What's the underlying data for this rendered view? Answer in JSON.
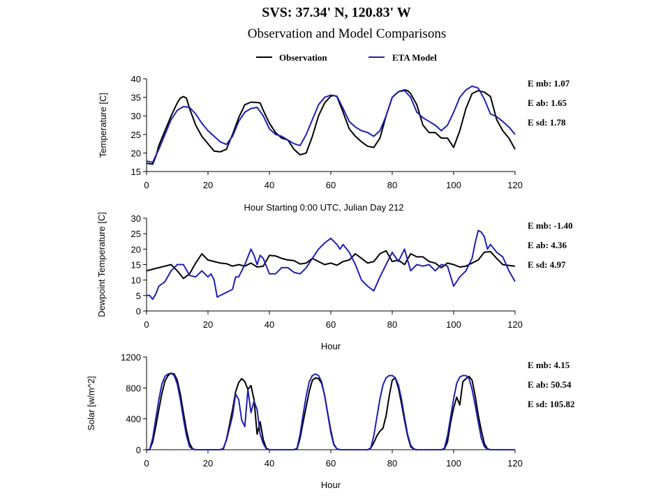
{
  "title": "SVS: 37.34' N, 120.83' W",
  "subtitle": "Observation and Model Comparisons",
  "legend": [
    {
      "label": "Observation",
      "color": "#000000"
    },
    {
      "label": "ETA Model",
      "color": "#1f1fb4"
    }
  ],
  "chart_data": [
    {
      "type": "line",
      "ylabel": "Temperature [C]",
      "xlabel": "Hour Starting 0:00 UTC, Julian Day 212",
      "xlim": [
        0,
        120
      ],
      "ylim": [
        15,
        40
      ],
      "xticks": [
        0,
        20,
        40,
        60,
        80,
        100,
        120
      ],
      "yticks": [
        15,
        20,
        25,
        30,
        35,
        40
      ],
      "stats": [
        "E mb: 1.07",
        "E ab: 1.65",
        "E sd: 1.78"
      ],
      "series": [
        {
          "name": "Observation",
          "color": "#000000",
          "x": [
            0,
            2,
            3,
            4,
            6,
            8,
            10,
            11,
            12,
            13,
            14,
            16,
            18,
            20,
            22,
            24,
            26,
            28,
            30,
            32,
            34,
            36,
            37,
            38,
            40,
            42,
            44,
            46,
            48,
            50,
            52,
            54,
            56,
            58,
            60,
            61,
            62,
            64,
            66,
            68,
            70,
            72,
            74,
            76,
            78,
            80,
            82,
            84,
            85,
            86,
            88,
            90,
            92,
            94,
            96,
            98,
            100,
            102,
            104,
            106,
            108,
            110,
            112,
            114,
            116,
            118,
            120
          ],
          "y": [
            17.2,
            17,
            19,
            22,
            26,
            30,
            33.5,
            34.8,
            35.2,
            34.8,
            32,
            27.5,
            24.5,
            22.5,
            20.5,
            20.3,
            21,
            25,
            29.5,
            33,
            33.7,
            33.6,
            33.5,
            31.5,
            28,
            25.5,
            24,
            23.5,
            21,
            19.5,
            20,
            24.5,
            30,
            33.5,
            35.3,
            35.5,
            35.2,
            31,
            26.5,
            24.5,
            23,
            21.8,
            21.5,
            24,
            30,
            35,
            36.5,
            37,
            36.8,
            36,
            33,
            27.5,
            25.5,
            25.5,
            24,
            24,
            21.5,
            26,
            32,
            36,
            36.8,
            36.4,
            35.2,
            29,
            26,
            24,
            21
          ]
        },
        {
          "name": "ETA Model",
          "color": "#1f1fb4",
          "x": [
            0,
            2,
            4,
            6,
            8,
            10,
            12,
            14,
            16,
            18,
            20,
            22,
            24,
            26,
            28,
            30,
            32,
            34,
            36,
            38,
            40,
            42,
            44,
            46,
            48,
            50,
            52,
            54,
            56,
            58,
            60,
            62,
            64,
            66,
            68,
            70,
            72,
            74,
            76,
            78,
            80,
            82,
            84,
            86,
            88,
            90,
            92,
            94,
            96,
            98,
            100,
            102,
            104,
            106,
            108,
            110,
            112,
            114,
            116,
            118,
            120
          ],
          "y": [
            17.8,
            17.5,
            21,
            25,
            29,
            31.5,
            32.5,
            32.3,
            30.5,
            28,
            26,
            24.5,
            23,
            22.3,
            24.5,
            28.5,
            31,
            32,
            32.3,
            30,
            26.5,
            25,
            24.5,
            23.5,
            22.5,
            22,
            25,
            29,
            33,
            35,
            35.6,
            35.3,
            32,
            28.5,
            27,
            26,
            25.5,
            24.5,
            26,
            30,
            35,
            36.5,
            36.8,
            35,
            31,
            29.5,
            28.5,
            27.5,
            26,
            27.5,
            31,
            35,
            37,
            38,
            37.5,
            34.5,
            30.5,
            29.8,
            28.5,
            27,
            25
          ]
        }
      ]
    },
    {
      "type": "line",
      "ylabel": "Dewpoint Temperature [C]",
      "xlabel": "Hour",
      "xlim": [
        0,
        120
      ],
      "ylim": [
        0,
        30
      ],
      "xticks": [
        0,
        20,
        40,
        60,
        80,
        100,
        120
      ],
      "yticks": [
        0,
        5,
        10,
        15,
        20,
        25,
        30
      ],
      "stats": [
        "E mb: -1.40",
        "E ab: 4.36",
        "E sd: 4.97"
      ],
      "series": [
        {
          "name": "Observation",
          "color": "#000000",
          "x": [
            0,
            2,
            4,
            6,
            8,
            10,
            12,
            14,
            16,
            18,
            20,
            22,
            24,
            26,
            28,
            30,
            32,
            34,
            36,
            38,
            40,
            42,
            44,
            46,
            48,
            50,
            52,
            54,
            56,
            58,
            60,
            62,
            64,
            66,
            68,
            70,
            72,
            74,
            76,
            78,
            80,
            82,
            84,
            86,
            88,
            90,
            92,
            94,
            96,
            98,
            100,
            102,
            104,
            106,
            108,
            110,
            112,
            114,
            116,
            118,
            120
          ],
          "y": [
            13,
            13.5,
            14,
            14.5,
            15,
            13,
            10.5,
            12,
            15.5,
            18.5,
            16.5,
            16,
            15.5,
            15.3,
            14.5,
            15,
            14.5,
            15.5,
            14.2,
            14.5,
            18,
            17.8,
            17,
            16.5,
            16.3,
            15.2,
            15.5,
            17,
            16,
            15,
            15.5,
            14.8,
            16,
            16.5,
            18.5,
            17,
            15.5,
            16,
            18.5,
            19.5,
            16,
            16.5,
            15,
            18.5,
            17.5,
            17.5,
            16,
            15.5,
            14,
            15.5,
            15,
            14.2,
            14.5,
            15.5,
            16.5,
            19,
            19.2,
            17,
            15,
            14.7,
            14.5
          ]
        },
        {
          "name": "ETA Model",
          "color": "#1f1fb4",
          "x": [
            0,
            1,
            2,
            3,
            4,
            6,
            8,
            10,
            12,
            14,
            16,
            18,
            20,
            21,
            22,
            23,
            24,
            26,
            28,
            29,
            30,
            32,
            34,
            35,
            36,
            37,
            38,
            40,
            42,
            44,
            46,
            48,
            50,
            52,
            54,
            56,
            58,
            60,
            62,
            63,
            64,
            66,
            68,
            70,
            72,
            74,
            76,
            78,
            80,
            81,
            82,
            84,
            86,
            88,
            90,
            92,
            94,
            96,
            98,
            100,
            102,
            104,
            106,
            107,
            108,
            109,
            110,
            111,
            112,
            114,
            116,
            118,
            120
          ],
          "y": [
            5,
            5,
            3.8,
            5.5,
            8,
            9.5,
            13,
            15,
            15,
            11.5,
            11,
            13,
            11,
            12,
            10,
            4.5,
            5,
            6,
            7,
            11,
            11,
            15,
            20,
            18,
            15,
            18,
            17,
            12,
            12,
            14,
            14,
            12.5,
            12,
            14,
            17,
            20,
            22,
            23.5,
            21.5,
            20,
            21.5,
            19,
            15,
            10,
            8,
            6.5,
            11,
            15,
            19,
            17.5,
            16,
            20,
            13,
            15,
            14.5,
            15,
            13,
            15,
            14.5,
            8,
            11,
            13,
            17,
            22,
            26,
            25.5,
            24,
            20,
            21.5,
            19,
            17.5,
            13,
            9.5
          ]
        }
      ]
    },
    {
      "type": "line",
      "ylabel": "Solar [w/m^2]",
      "xlabel": "Hour",
      "xlim": [
        0,
        120
      ],
      "ylim": [
        0,
        1200
      ],
      "xticks": [
        0,
        20,
        40,
        60,
        80,
        100,
        120
      ],
      "yticks": [
        0,
        400,
        800,
        1200
      ],
      "stats": [
        "E mb: 4.15",
        "E ab: 50.54",
        "E sd: 105.82"
      ],
      "series": [
        {
          "name": "Observation",
          "color": "#000000",
          "x": [
            0,
            1,
            2,
            3,
            4,
            5,
            6,
            7,
            8,
            9,
            10,
            11,
            12,
            13,
            14,
            15,
            16,
            24,
            25,
            26,
            27,
            28,
            29,
            30,
            31,
            32,
            33,
            34,
            35,
            36,
            37,
            38,
            39,
            40,
            48,
            49,
            50,
            51,
            52,
            53,
            54,
            55,
            56,
            57,
            58,
            59,
            60,
            61,
            62,
            63,
            64,
            72,
            73,
            74,
            75,
            76,
            77,
            78,
            79,
            80,
            81,
            82,
            83,
            84,
            85,
            86,
            87,
            88,
            96,
            97,
            98,
            99,
            100,
            101,
            102,
            103,
            104,
            105,
            106,
            107,
            108,
            109,
            110,
            111,
            112,
            120
          ],
          "y": [
            0,
            0,
            100,
            300,
            520,
            730,
            890,
            960,
            990,
            980,
            900,
            720,
            480,
            250,
            80,
            10,
            0,
            0,
            10,
            130,
            320,
            520,
            750,
            870,
            920,
            880,
            780,
            830,
            650,
            200,
            360,
            130,
            20,
            0,
            0,
            10,
            150,
            360,
            560,
            760,
            900,
            930,
            920,
            860,
            700,
            470,
            250,
            70,
            10,
            0,
            0,
            0,
            20,
            90,
            180,
            240,
            280,
            440,
            690,
            900,
            930,
            800,
            600,
            380,
            180,
            40,
            5,
            0,
            0,
            10,
            100,
            350,
            540,
            680,
            580,
            880,
            920,
            950,
            900,
            700,
            450,
            250,
            80,
            10,
            0,
            0
          ]
        },
        {
          "name": "ETA Model",
          "color": "#1f1fb4",
          "x": [
            0,
            1,
            2,
            3,
            4,
            5,
            6,
            7,
            8,
            9,
            10,
            11,
            12,
            13,
            14,
            15,
            16,
            24,
            25,
            26,
            27,
            28,
            29,
            30,
            31,
            32,
            33,
            34,
            35,
            36,
            37,
            38,
            39,
            40,
            48,
            49,
            50,
            51,
            52,
            53,
            54,
            55,
            56,
            57,
            58,
            59,
            60,
            61,
            62,
            63,
            64,
            72,
            73,
            74,
            75,
            76,
            77,
            78,
            79,
            80,
            81,
            82,
            83,
            84,
            85,
            86,
            87,
            88,
            96,
            97,
            98,
            99,
            100,
            101,
            102,
            103,
            104,
            105,
            106,
            107,
            108,
            109,
            110,
            111,
            112,
            120
          ],
          "y": [
            0,
            0,
            150,
            400,
            650,
            850,
            950,
            980,
            990,
            960,
            850,
            650,
            400,
            180,
            40,
            5,
            0,
            0,
            20,
            120,
            280,
            440,
            720,
            650,
            380,
            300,
            780,
            480,
            630,
            520,
            200,
            80,
            10,
            0,
            0,
            20,
            200,
            460,
            700,
            880,
            960,
            980,
            960,
            880,
            700,
            460,
            220,
            60,
            10,
            0,
            0,
            0,
            20,
            180,
            420,
            660,
            840,
            930,
            960,
            960,
            930,
            840,
            660,
            420,
            200,
            60,
            10,
            0,
            0,
            20,
            180,
            420,
            660,
            860,
            940,
            960,
            960,
            920,
            780,
            580,
            360,
            150,
            40,
            5,
            0,
            0
          ]
        }
      ]
    }
  ]
}
